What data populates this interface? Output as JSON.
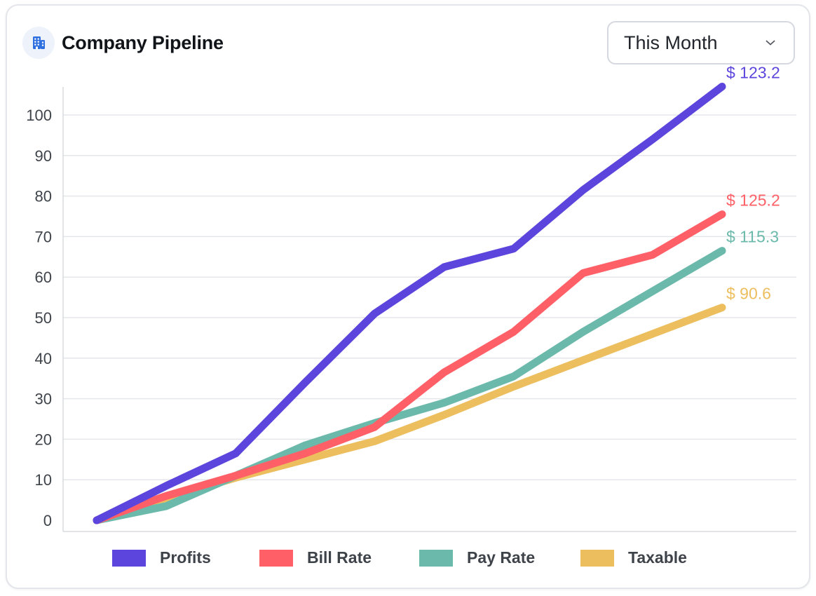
{
  "header": {
    "title": "Company Pipeline",
    "icon": "building-icon",
    "icon_color": "#2f6fe0"
  },
  "period_select": {
    "selected": "This Month",
    "icon": "chevron-down-icon"
  },
  "chart_data": {
    "type": "line",
    "x": [
      0,
      1,
      2,
      3,
      4,
      5,
      6,
      7,
      8,
      9
    ],
    "ylim": [
      0,
      100
    ],
    "yticks": [
      0,
      10,
      20,
      30,
      40,
      50,
      60,
      70,
      80,
      90,
      100
    ],
    "grid": true,
    "legend": "bottom",
    "series": [
      {
        "name": "Profits",
        "color": "#5b45dd",
        "values": [
          0,
          8.5,
          16.5,
          34,
          51,
          62.5,
          67,
          81.5,
          94,
          107
        ],
        "end_label": "$ 123.2"
      },
      {
        "name": "Bill Rate",
        "color": "#ff6068",
        "values": [
          0,
          6,
          11,
          16.5,
          23,
          36.5,
          46.5,
          61,
          65.5,
          75.5
        ],
        "end_label": "$ 125.2"
      },
      {
        "name": "Pay Rate",
        "color": "#6bb9ab",
        "values": [
          0,
          3.5,
          11,
          18.5,
          24,
          29,
          35.5,
          46.5,
          56.5,
          66.5
        ],
        "end_label": "$ 115.3"
      },
      {
        "name": "Taxable",
        "color": "#ecbe5e",
        "values": [
          0,
          5.5,
          10.5,
          15,
          19.5,
          26,
          33,
          39.5,
          46,
          52.5
        ],
        "end_label": "$ 90.6"
      }
    ]
  }
}
